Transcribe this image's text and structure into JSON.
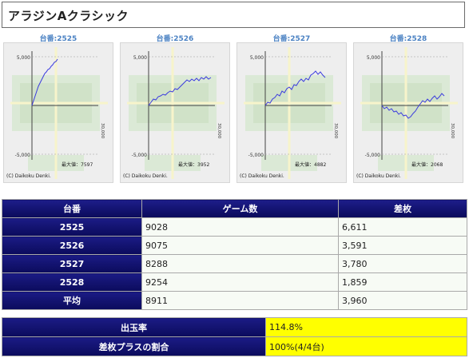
{
  "title": "アラジンAクラシック",
  "graphs": [
    {
      "label": "台番:2525",
      "max_label": "最大値：7597",
      "y_top": "5,000",
      "y_bottom": "-5,000",
      "x_end": "30,000",
      "copyright": "(C) Daikoku Denki."
    },
    {
      "label": "台番:2526",
      "max_label": "最大値：3952",
      "y_top": "5,000",
      "y_bottom": "-5,000",
      "x_end": "30,000",
      "copyright": "(C) Daikoku Denki."
    },
    {
      "label": "台番:2527",
      "max_label": "最大値：4882",
      "y_top": "5,000",
      "y_bottom": "-5,000",
      "x_end": "30,000",
      "copyright": "(C) Daikoku Denki."
    },
    {
      "label": "台番:2528",
      "max_label": "最大値：2068",
      "y_top": "5,000",
      "y_bottom": "-5,000",
      "x_end": "30,000",
      "copyright": "(C) Daikoku Denki."
    }
  ],
  "table": {
    "headers": [
      "台番",
      "ゲーム数",
      "差枚"
    ],
    "rows": [
      {
        "machine": "2525",
        "games": "9028",
        "diff": "6,611"
      },
      {
        "machine": "2526",
        "games": "9075",
        "diff": "3,591"
      },
      {
        "machine": "2527",
        "games": "8288",
        "diff": "3,780"
      },
      {
        "machine": "2528",
        "games": "9254",
        "diff": "1,859"
      },
      {
        "machine": "平均",
        "games": "8911",
        "diff": "3,960"
      }
    ]
  },
  "summary": [
    {
      "label": "出玉率",
      "value": "114.8%"
    },
    {
      "label": "差枚プラスの割合",
      "value": "100%(4/4台)"
    }
  ],
  "colors": {
    "header_navy": "#0d0d66",
    "highlight": "#ffff00",
    "graph_line": "#3a3adf",
    "label_blue": "#4b82c3"
  }
}
